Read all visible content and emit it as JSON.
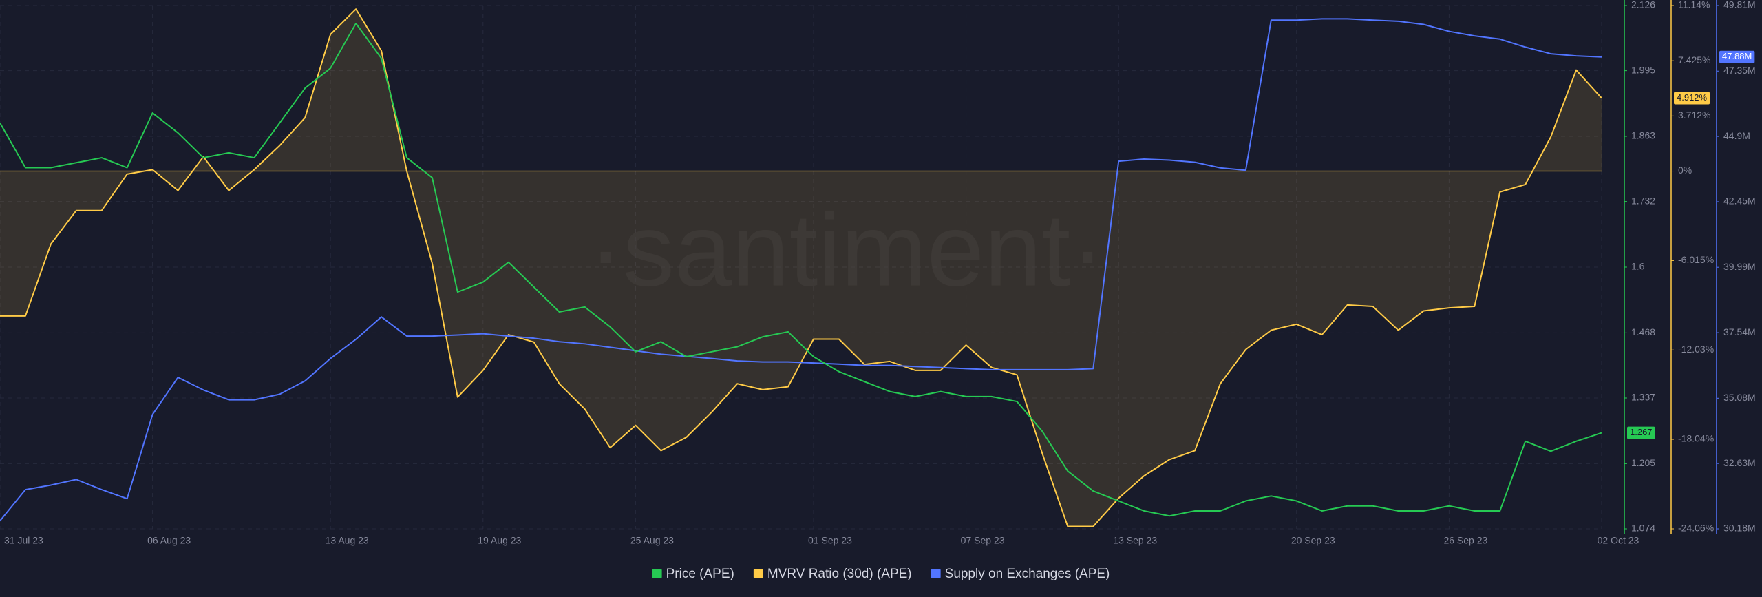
{
  "chart_data": {
    "type": "line",
    "watermark": "·santiment·",
    "categories": [
      "31 Jul 23",
      null,
      null,
      null,
      null,
      null,
      "06 Aug 23",
      null,
      null,
      null,
      null,
      null,
      null,
      "13 Aug 23",
      null,
      null,
      null,
      null,
      null,
      "19 Aug 23",
      null,
      null,
      null,
      null,
      null,
      "25 Aug 23",
      null,
      null,
      null,
      null,
      null,
      null,
      "01 Sep 23",
      null,
      null,
      null,
      null,
      null,
      "07 Sep 23",
      null,
      null,
      null,
      null,
      null,
      "13 Sep 23",
      null,
      null,
      null,
      null,
      null,
      null,
      "20 Sep 23",
      null,
      null,
      null,
      null,
      null,
      "26 Sep 23",
      null,
      null,
      null,
      null,
      null,
      "02 Oct 23"
    ],
    "series": [
      {
        "name": "Price (APE)",
        "color": "#26c953",
        "axis": "y",
        "current_label": "1.267",
        "values": [
          1.89,
          1.8,
          1.8,
          1.81,
          1.82,
          1.8,
          1.91,
          1.87,
          1.82,
          1.83,
          1.82,
          1.89,
          1.96,
          2.0,
          2.09,
          2.02,
          1.82,
          1.78,
          1.55,
          1.57,
          1.61,
          1.56,
          1.51,
          1.52,
          1.48,
          1.43,
          1.45,
          1.42,
          1.43,
          1.44,
          1.46,
          1.47,
          1.42,
          1.39,
          1.37,
          1.35,
          1.34,
          1.35,
          1.34,
          1.34,
          1.33,
          1.27,
          1.19,
          1.15,
          1.13,
          1.11,
          1.1,
          1.11,
          1.11,
          1.13,
          1.14,
          1.13,
          1.11,
          1.12,
          1.12,
          1.11,
          1.11,
          1.12,
          1.11,
          1.11,
          1.25,
          1.23,
          1.25,
          1.267
        ]
      },
      {
        "name": "MVRV Ratio (30d) (APE)",
        "color": "#ffcb47",
        "axis": "y2",
        "current_label": "4.912%",
        "values": [
          -9.74,
          -9.74,
          -4.91,
          -2.65,
          -2.65,
          -0.2,
          0.1,
          -1.3,
          0.97,
          -1.3,
          0.1,
          1.72,
          3.6,
          9.2,
          10.9,
          8.1,
          0,
          -6.2,
          -15.2,
          -13.4,
          -11.0,
          -11.5,
          -14.3,
          -16.0,
          -18.6,
          -17.1,
          -18.8,
          -17.9,
          -16.2,
          -14.3,
          -14.7,
          -14.5,
          -11.3,
          -11.3,
          -13.0,
          -12.8,
          -13.4,
          -13.4,
          -11.7,
          -13.2,
          -13.7,
          -19.0,
          -23.9,
          -23.9,
          -22.0,
          -20.5,
          -19.4,
          -18.8,
          -14.3,
          -12.0,
          -10.7,
          -10.3,
          -11.0,
          -9.0,
          -9.1,
          -10.7,
          -9.4,
          -9.2,
          -9.1,
          -1.4,
          -0.9,
          2.3,
          6.8,
          4.912
        ]
      },
      {
        "name": "Supply on Exchanges (APE)",
        "color": "#5275ff",
        "axis": "y3",
        "current_label": "47.88M",
        "values": [
          30.48,
          31.65,
          31.82,
          32.03,
          31.65,
          31.31,
          34.47,
          35.86,
          35.39,
          35.02,
          35.02,
          35.23,
          35.73,
          36.57,
          37.29,
          38.13,
          37.41,
          37.41,
          37.45,
          37.5,
          37.41,
          37.33,
          37.2,
          37.12,
          36.99,
          36.86,
          36.73,
          36.65,
          36.57,
          36.48,
          36.44,
          36.44,
          36.4,
          36.36,
          36.31,
          36.31,
          36.27,
          36.23,
          36.19,
          36.15,
          36.15,
          36.15,
          36.15,
          36.19,
          43.97,
          44.05,
          44.01,
          43.93,
          43.72,
          43.63,
          49.26,
          49.26,
          49.31,
          49.31,
          49.26,
          49.22,
          49.1,
          48.84,
          48.67,
          48.55,
          48.25,
          48.0,
          47.92,
          47.88
        ]
      }
    ],
    "ylim": [
      1.074,
      2.126
    ],
    "yticks": [
      2.126,
      1.995,
      1.863,
      1.732,
      1.6,
      1.468,
      1.337,
      1.205,
      1.074
    ],
    "y2lim": [
      -24.06,
      11.14
    ],
    "y2ticks": [
      {
        "value": 11.14,
        "label": "11.14%"
      },
      {
        "value": 7.425,
        "label": "7.425%"
      },
      {
        "value": 3.712,
        "label": "3.712%"
      },
      {
        "value": 0,
        "label": "0%"
      },
      {
        "value": -6.015,
        "label": "-6.015%"
      },
      {
        "value": -12.03,
        "label": "-12.03%"
      },
      {
        "value": -18.04,
        "label": "-18.04%"
      },
      {
        "value": -24.06,
        "label": "-24.06%"
      }
    ],
    "y3lim": [
      30.18,
      49.81
    ],
    "y3ticks": [
      {
        "value": 49.81,
        "label": "49.81M"
      },
      {
        "value": 47.35,
        "label": "47.35M"
      },
      {
        "value": 44.9,
        "label": "44.9M"
      },
      {
        "value": 42.45,
        "label": "42.45M"
      },
      {
        "value": 39.99,
        "label": "39.99M"
      },
      {
        "value": 37.54,
        "label": "37.54M"
      },
      {
        "value": 35.08,
        "label": "35.08M"
      },
      {
        "value": 32.63,
        "label": "32.63M"
      },
      {
        "value": 30.18,
        "label": "30.18M"
      }
    ],
    "grid": true
  }
}
